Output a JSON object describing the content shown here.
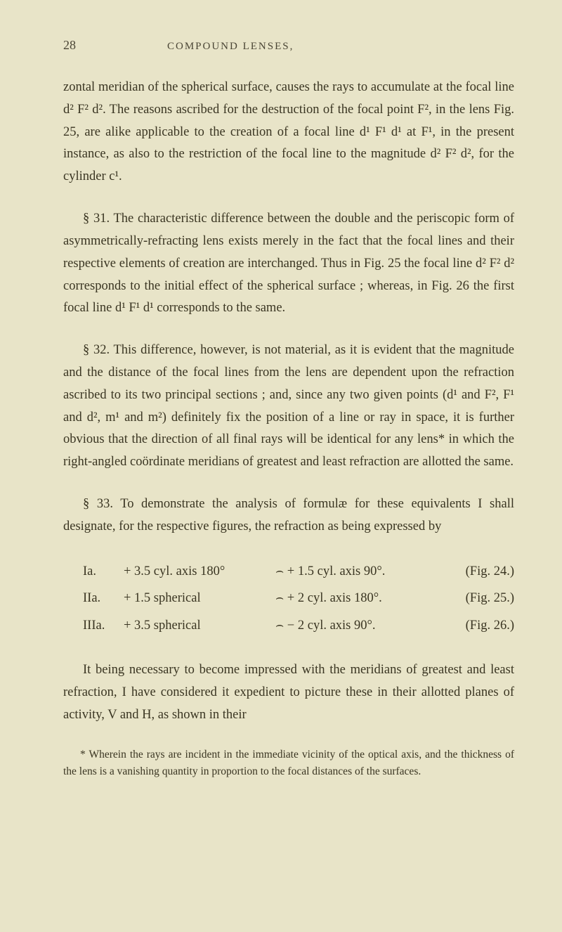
{
  "header": {
    "page_number": "28",
    "running_head": "COMPOUND LENSES,"
  },
  "paragraphs": {
    "p1": "zontal meridian of the spherical surface, causes the rays to accumulate at the focal line d² F² d². The reasons ascribed for the destruction of the focal point F², in the lens Fig. 25, are alike applicable to the creation of a focal line d¹ F¹ d¹ at F¹, in the present instance, as also to the restriction of the focal line to the magnitude d² F² d², for the cylinder c¹.",
    "p2": "§ 31. The characteristic difference between the double and the periscopic form of asymmetrically-refracting lens exists merely in the fact that the focal lines and their respective elements of creation are interchanged. Thus in Fig. 25 the focal line d² F² d² corresponds to the initial effect of the spherical surface ; whereas, in Fig. 26 the first focal line d¹ F¹ d¹ corresponds to the same.",
    "p3": "§ 32. This difference, however, is not material, as it is evident that the magnitude and the distance of the focal lines from the lens are dependent upon the refraction ascribed to its two principal sections ; and, since any two given points (d¹ and F², F¹ and d², m¹ and m²) definitely fix the position of a line or ray in space, it is further obvious that the direction of all final rays will be identical for any lens* in which the right-angled coördinate meridians of greatest and least refraction are allotted the same.",
    "p4": "§ 33. To demonstrate the analysis of formulæ for these equivalents I shall designate, for the respective figures, the refraction as being expressed by",
    "p5": "It being necessary to become impressed with the meridians of greatest and least refraction, I have considered it expedient to picture these in their allotted planes of activity, V and H, as shown in their"
  },
  "table": {
    "rows": [
      {
        "label": "Ia.",
        "left": "+ 3.5 cyl. axis 180°",
        "mid": "⌢ + 1.5 cyl. axis 90°.",
        "right": "(Fig. 24.)"
      },
      {
        "label": "IIa.",
        "left": "+ 1.5 spherical",
        "mid": "⌢ +  2 cyl. axis 180°.",
        "right": "(Fig. 25.)"
      },
      {
        "label": "IIIa.",
        "left": "+ 3.5 spherical",
        "mid": "⌢ −  2 cyl. axis 90°.",
        "right": "(Fig. 26.)"
      }
    ]
  },
  "footnote": "* Wherein the rays are incident in the immediate vicinity of the optical axis, and the thickness of the lens is a vanishing quantity in proportion to the focal distances of the surfaces."
}
